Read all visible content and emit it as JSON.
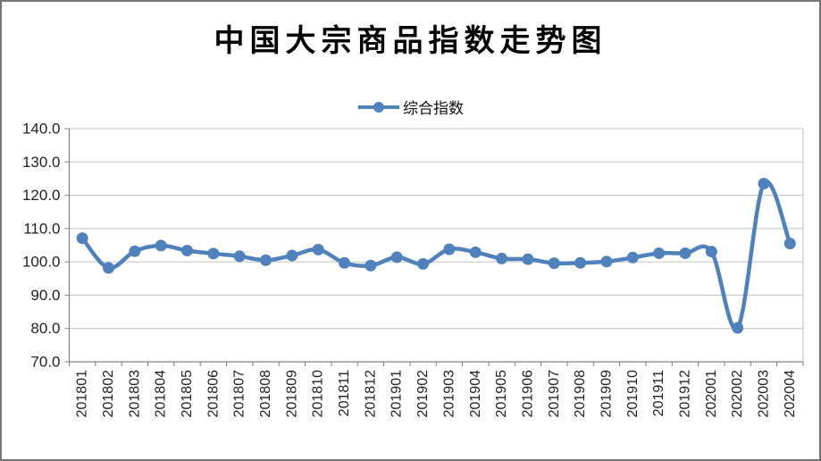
{
  "page": {
    "background": "#ffffff",
    "border_color": "#757575"
  },
  "header": {
    "title": "中国大宗商品指数走势图"
  },
  "legend": {
    "items": [
      {
        "label": "综合指数",
        "color": "#4F81BD"
      }
    ]
  },
  "chart_data": {
    "type": "line",
    "title": "中国大宗商品指数走势图",
    "legend_position": "top",
    "grid": true,
    "smooth": true,
    "marker": "circle",
    "line_color": "#4F81BD",
    "grid_color": "#C2C2C2",
    "axis_color": "#808080",
    "label_color": "#222222",
    "xlabel": "",
    "ylabel": "",
    "ylim": [
      70,
      140
    ],
    "ytick_step": 10,
    "ytick_labels": [
      "70.0",
      "80.0",
      "90.0",
      "100.0",
      "110.0",
      "120.0",
      "130.0",
      "140.0"
    ],
    "categories": [
      "201801",
      "201802",
      "201803",
      "201804",
      "201805",
      "201806",
      "201807",
      "201808",
      "201809",
      "201810",
      "201811",
      "201812",
      "201901",
      "201902",
      "201903",
      "201904",
      "201905",
      "201906",
      "201907",
      "201908",
      "201909",
      "201910",
      "201911",
      "201912",
      "202001",
      "202002",
      "202003",
      "202004"
    ],
    "series": [
      {
        "name": "综合指数",
        "color": "#4F81BD",
        "values": [
          107.1,
          98.2,
          103.2,
          104.9,
          103.4,
          102.5,
          101.7,
          100.5,
          101.9,
          103.7,
          99.7,
          98.9,
          101.4,
          99.4,
          103.8,
          102.9,
          101.0,
          100.8,
          99.6,
          99.7,
          100.1,
          101.3,
          102.6,
          102.6,
          103.1,
          80.2,
          123.5,
          105.5
        ]
      }
    ]
  }
}
